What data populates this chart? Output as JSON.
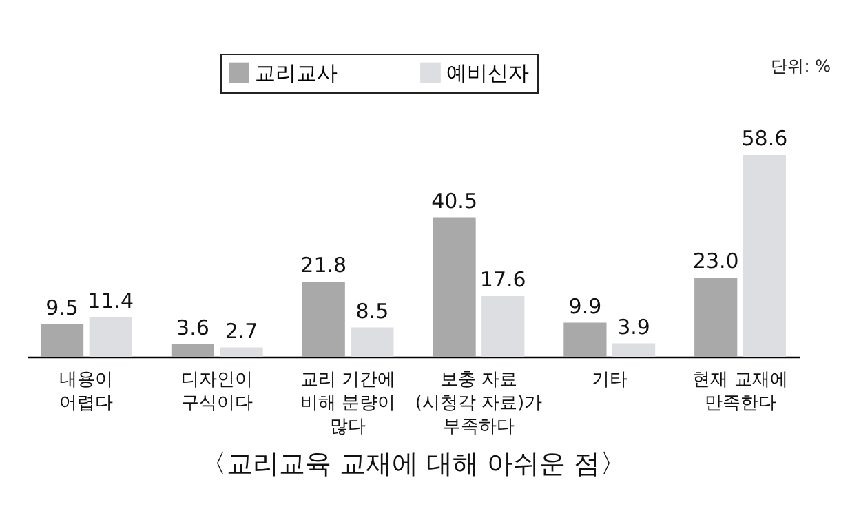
{
  "chart_data": {
    "type": "bar",
    "title": "〈교리교육 교재에 대해 아쉬운 점〉",
    "categories": [
      "내용이\n어렵다",
      "디자인이\n구식이다",
      "교리 기간에\n비해 분량이\n많다",
      "보충 자료\n(시청각 자료)가\n부족하다",
      "기타",
      "현재 교재에\n만족한다"
    ],
    "series": [
      {
        "name": "교리교사",
        "color": "#a9a9a9",
        "values": [
          9.5,
          3.6,
          21.8,
          40.5,
          9.9,
          23.0
        ],
        "value_labels": [
          "9.5",
          "3.6",
          "21.8",
          "40.5",
          "9.9",
          "23.0"
        ]
      },
      {
        "name": "예비신자",
        "color": "#dddee1",
        "values": [
          11.4,
          2.7,
          8.5,
          17.6,
          3.9,
          58.6
        ],
        "value_labels": [
          "11.4",
          "2.7",
          "8.5",
          "17.6",
          "3.9",
          "58.6"
        ]
      }
    ],
    "legend": "top",
    "annotations": [
      "단위: %"
    ]
  }
}
